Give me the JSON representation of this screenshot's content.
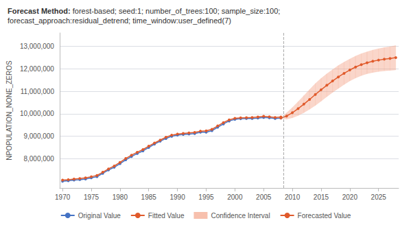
{
  "chart_data": {
    "type": "line",
    "title": "Forecast Method:",
    "subtitle": " forest-based; seed:1; number_of_trees:100; sample_size:100;\nforecast_approach:residual_detrend; time_window:user_defined(7)",
    "y_label": "NPOPULATION_NONE_ZEROS",
    "xlim": [
      1969.5,
      2028.5
    ],
    "ylim": [
      6700000,
      13600000
    ],
    "xticks": [
      1970,
      1975,
      1980,
      1985,
      1990,
      1995,
      2000,
      2005,
      2010,
      2015,
      2020,
      2025
    ],
    "yticks": [
      {
        "value": 8000000,
        "label": "8,000,000"
      },
      {
        "value": 9000000,
        "label": "9,000,000"
      },
      {
        "value": 10000000,
        "label": "10,000,000"
      },
      {
        "value": 11000000,
        "label": "11,000,000"
      },
      {
        "value": 12000000,
        "label": "12,000,000"
      },
      {
        "value": 13000000,
        "label": "13,000,000"
      }
    ],
    "grid": true,
    "legend": "bottom",
    "vline_x": 2008.5,
    "series": [
      {
        "name": "Original Value",
        "type": "line",
        "marker": "circle",
        "color": "#4472c4",
        "x": [
          1970,
          1971,
          1972,
          1973,
          1974,
          1975,
          1976,
          1977,
          1978,
          1979,
          1980,
          1981,
          1982,
          1983,
          1984,
          1985,
          1986,
          1987,
          1988,
          1989,
          1990,
          1991,
          1992,
          1993,
          1994,
          1995,
          1996,
          1997,
          1998,
          1999,
          2000,
          2001,
          2002,
          2003,
          2004,
          2005,
          2006,
          2007,
          2008
        ],
        "values": [
          7000000,
          7020000,
          7050000,
          7070000,
          7100000,
          7150000,
          7200000,
          7350000,
          7500000,
          7620000,
          7780000,
          7950000,
          8100000,
          8230000,
          8350000,
          8500000,
          8650000,
          8780000,
          8900000,
          9000000,
          9050000,
          9080000,
          9100000,
          9120000,
          9180000,
          9180000,
          9250000,
          9400000,
          9550000,
          9680000,
          9750000,
          9780000,
          9790000,
          9790000,
          9810000,
          9840000,
          9820000,
          9790000,
          9810000
        ]
      },
      {
        "name": "Fitted Value",
        "type": "line",
        "marker": "circle",
        "color": "#e05a2b",
        "x": [
          1970,
          1971,
          1972,
          1973,
          1974,
          1975,
          1976,
          1977,
          1978,
          1979,
          1980,
          1981,
          1982,
          1983,
          1984,
          1985,
          1986,
          1987,
          1988,
          1989,
          1990,
          1991,
          1992,
          1993,
          1994,
          1995,
          1996,
          1997,
          1998,
          1999,
          2000,
          2001,
          2002,
          2003,
          2004,
          2005,
          2006,
          2007,
          2008
        ],
        "values": [
          7050000,
          7070000,
          7100000,
          7120000,
          7150000,
          7200000,
          7260000,
          7400000,
          7550000,
          7680000,
          7840000,
          8010000,
          8160000,
          8290000,
          8410000,
          8560000,
          8700000,
          8830000,
          8960000,
          9050000,
          9100000,
          9130000,
          9150000,
          9170000,
          9230000,
          9240000,
          9310000,
          9460000,
          9610000,
          9730000,
          9800000,
          9820000,
          9830000,
          9840000,
          9860000,
          9890000,
          9870000,
          9840000,
          9860000
        ]
      },
      {
        "name": "Confidence Interval",
        "type": "band",
        "color": "#f4a58a",
        "x": [
          2008,
          2009,
          2010,
          2011,
          2012,
          2013,
          2014,
          2015,
          2016,
          2017,
          2018,
          2019,
          2020,
          2021,
          2022,
          2023,
          2024,
          2025,
          2026,
          2027,
          2028
        ],
        "lower": [
          9810000,
          9760000,
          9820000,
          9920000,
          10050000,
          10200000,
          10370000,
          10560000,
          10760000,
          10950000,
          11130000,
          11300000,
          11460000,
          11590000,
          11700000,
          11780000,
          11840000,
          11880000,
          11910000,
          11930000,
          11950000
        ],
        "upper": [
          9810000,
          10040000,
          10280000,
          10540000,
          10810000,
          11080000,
          11350000,
          11580000,
          11780000,
          11970000,
          12150000,
          12300000,
          12440000,
          12570000,
          12680000,
          12760000,
          12840000,
          12900000,
          12950000,
          12990000,
          13040000
        ]
      },
      {
        "name": "Forecasted Value",
        "type": "line",
        "marker": "circle",
        "color": "#e05a2b",
        "x": [
          2008,
          2009,
          2010,
          2011,
          2012,
          2013,
          2014,
          2015,
          2016,
          2017,
          2018,
          2019,
          2020,
          2021,
          2022,
          2023,
          2024,
          2025,
          2026,
          2027,
          2028
        ],
        "values": [
          9810000,
          9900000,
          10050000,
          10230000,
          10430000,
          10640000,
          10860000,
          11070000,
          11270000,
          11460000,
          11640000,
          11800000,
          11950000,
          12080000,
          12190000,
          12270000,
          12340000,
          12390000,
          12430000,
          12460000,
          12500000
        ]
      }
    ]
  }
}
